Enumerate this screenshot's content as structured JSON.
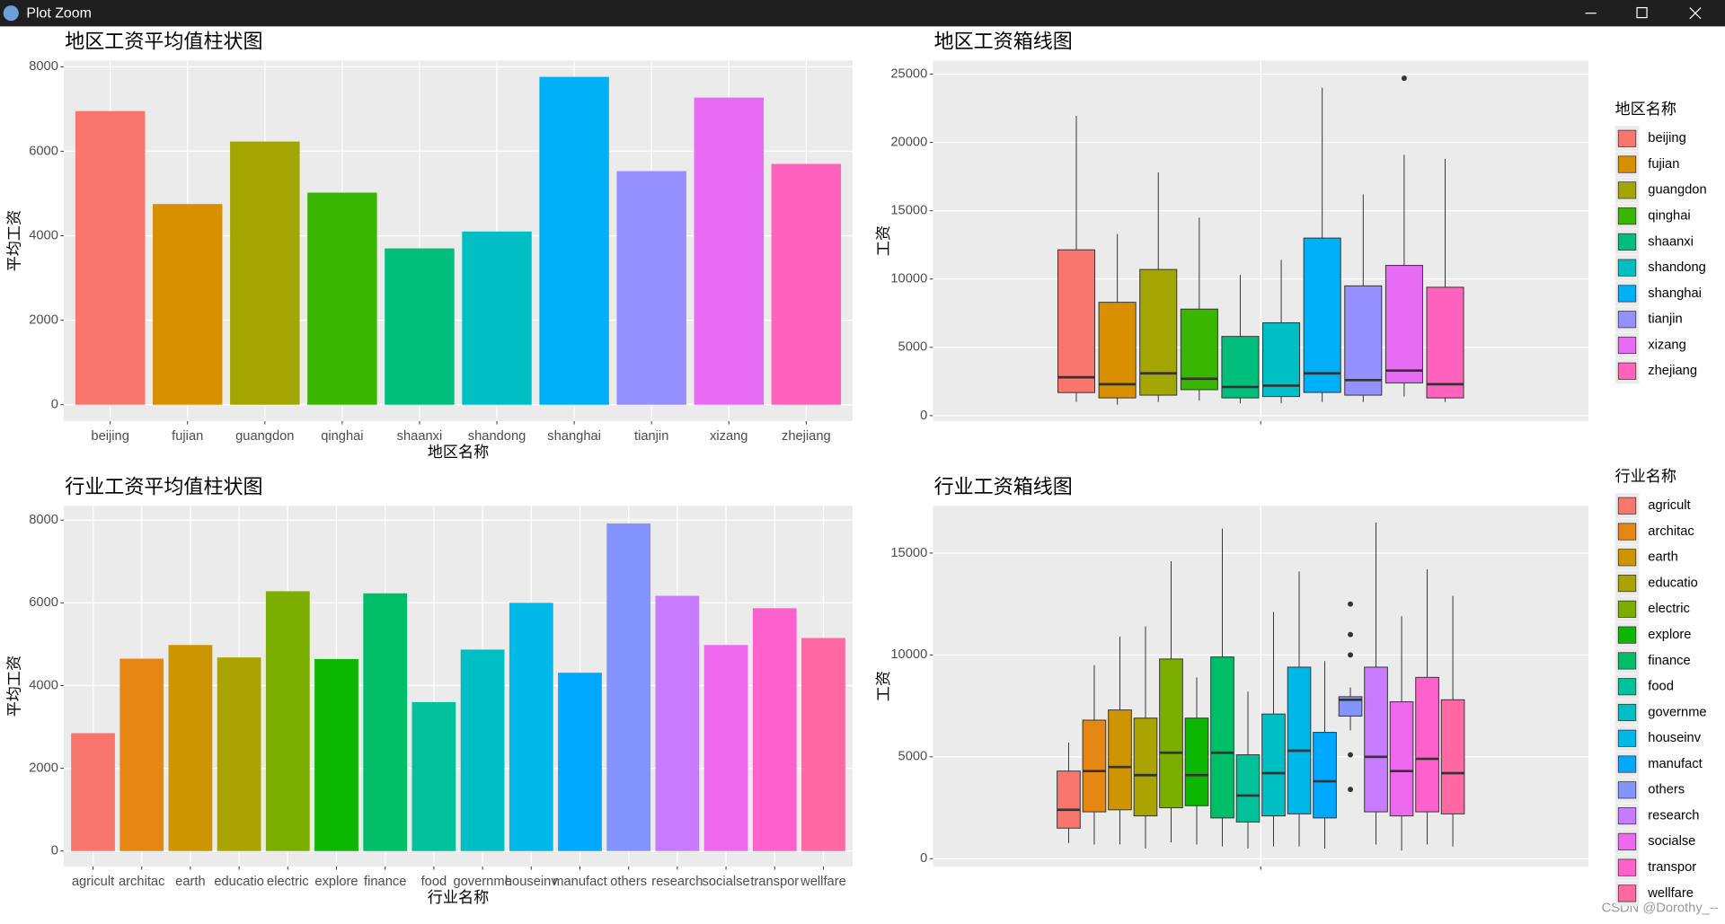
{
  "window_title": "Plot Zoom",
  "watermark": "CSDN @Dorothy_--",
  "chart_data": [
    {
      "type": "bar",
      "title": "地区工资平均值柱状图",
      "x_label": "地区名称",
      "y_label": "平均工资",
      "categories": [
        "beijing",
        "fujian",
        "guangdon",
        "qinghai",
        "shaanxi",
        "shandong",
        "shanghai",
        "tianjin",
        "xizang",
        "zhejiang"
      ],
      "values": [
        6950,
        4750,
        6230,
        5020,
        3700,
        4100,
        7760,
        5530,
        7270,
        5700
      ],
      "colors": [
        "#F8766D",
        "#D89000",
        "#A3A500",
        "#39B600",
        "#00BF7D",
        "#00BFC4",
        "#00B0F6",
        "#9590FF",
        "#E76BF3",
        "#FF62BC"
      ],
      "ylim": [
        -388,
        8148
      ],
      "yticks": [
        0,
        2000,
        4000,
        6000,
        8000
      ]
    },
    {
      "type": "box",
      "title": "地区工资箱线图",
      "y_label": "工资",
      "legend_title": "地区名称",
      "ylim": [
        -400,
        26000
      ],
      "yticks": [
        0,
        5000,
        10000,
        15000,
        20000,
        25000
      ],
      "series": [
        {
          "name": "beijing",
          "color": "#F8766D",
          "min": 1000,
          "q1": 1690,
          "median": 2810,
          "q3": 12140,
          "max": 21950,
          "outliers": []
        },
        {
          "name": "fujian",
          "color": "#D89000",
          "min": 800,
          "q1": 1300,
          "median": 2300,
          "q3": 8300,
          "max": 13300,
          "outliers": []
        },
        {
          "name": "guangdon",
          "color": "#A3A500",
          "min": 1000,
          "q1": 1500,
          "median": 3100,
          "q3": 10700,
          "max": 17800,
          "outliers": []
        },
        {
          "name": "qinghai",
          "color": "#39B600",
          "min": 1100,
          "q1": 1900,
          "median": 2700,
          "q3": 7800,
          "max": 14500,
          "outliers": []
        },
        {
          "name": "shaanxi",
          "color": "#00BF7D",
          "min": 900,
          "q1": 1300,
          "median": 2100,
          "q3": 5800,
          "max": 10300,
          "outliers": []
        },
        {
          "name": "shandong",
          "color": "#00BFC4",
          "min": 900,
          "q1": 1400,
          "median": 2200,
          "q3": 6800,
          "max": 11400,
          "outliers": []
        },
        {
          "name": "shanghai",
          "color": "#00B0F6",
          "min": 1000,
          "q1": 1700,
          "median": 3100,
          "q3": 13000,
          "max": 24000,
          "outliers": []
        },
        {
          "name": "tianjin",
          "color": "#9590FF",
          "min": 1000,
          "q1": 1500,
          "median": 2600,
          "q3": 9500,
          "max": 16200,
          "outliers": []
        },
        {
          "name": "xizang",
          "color": "#E76BF3",
          "min": 1400,
          "q1": 2400,
          "median": 3300,
          "q3": 11000,
          "max": 19100,
          "outliers": [
            24700
          ]
        },
        {
          "name": "zhejiang",
          "color": "#FF62BC",
          "min": 1000,
          "q1": 1300,
          "median": 2300,
          "q3": 9400,
          "max": 18800,
          "outliers": []
        }
      ]
    },
    {
      "type": "bar",
      "title": "行业工资平均值柱状图",
      "x_label": "行业名称",
      "y_label": "平均工资",
      "categories": [
        "agricult",
        "architac",
        "earth",
        "educatio",
        "electric",
        "explore",
        "finance",
        "food",
        "governme",
        "houseinv",
        "manufact",
        "others",
        "research",
        "socialse",
        "transpor",
        "wellfare"
      ],
      "values": [
        2850,
        4650,
        4980,
        4680,
        6280,
        4640,
        6230,
        3600,
        4870,
        6000,
        4310,
        7920,
        6170,
        4980,
        5870,
        5150
      ],
      "colors": [
        "#F8766D",
        "#E68613",
        "#CD9600",
        "#ABA300",
        "#7CAE00",
        "#0CB702",
        "#00BE67",
        "#00C19A",
        "#00BFC4",
        "#00B8E7",
        "#00A9FF",
        "#8494FF",
        "#C77CFF",
        "#ED68ED",
        "#FF61CC",
        "#FF68A1"
      ],
      "ylim": [
        -372,
        8346
      ],
      "yticks": [
        0,
        2000,
        4000,
        6000,
        8000
      ]
    },
    {
      "type": "box",
      "title": "行业工资箱线图",
      "y_label": "工资",
      "legend_title": "行业名称",
      "ylim": [
        -380,
        17320
      ],
      "yticks": [
        0,
        5000,
        10000,
        15000
      ],
      "series": [
        {
          "name": "agricult",
          "color": "#F8766D",
          "min": 770,
          "q1": 1500,
          "median": 2400,
          "q3": 4300,
          "max": 5700,
          "outliers": []
        },
        {
          "name": "architac",
          "color": "#E68613",
          "min": 700,
          "q1": 2300,
          "median": 4300,
          "q3": 6800,
          "max": 9500,
          "outliers": []
        },
        {
          "name": "earth",
          "color": "#CD9600",
          "min": 700,
          "q1": 2400,
          "median": 4500,
          "q3": 7300,
          "max": 10900,
          "outliers": []
        },
        {
          "name": "educatio",
          "color": "#ABA300",
          "min": 500,
          "q1": 2100,
          "median": 4100,
          "q3": 6900,
          "max": 11400,
          "outliers": []
        },
        {
          "name": "electric",
          "color": "#7CAE00",
          "min": 800,
          "q1": 2500,
          "median": 5200,
          "q3": 9800,
          "max": 14600,
          "outliers": []
        },
        {
          "name": "explore",
          "color": "#0CB702",
          "min": 700,
          "q1": 2600,
          "median": 4100,
          "q3": 6900,
          "max": 8900,
          "outliers": []
        },
        {
          "name": "finance",
          "color": "#00BE67",
          "min": 600,
          "q1": 2000,
          "median": 5200,
          "q3": 9900,
          "max": 16200,
          "outliers": []
        },
        {
          "name": "food",
          "color": "#00C19A",
          "min": 500,
          "q1": 1800,
          "median": 3100,
          "q3": 5100,
          "max": 8200,
          "outliers": []
        },
        {
          "name": "governme",
          "color": "#00BFC4",
          "min": 600,
          "q1": 2100,
          "median": 4200,
          "q3": 7100,
          "max": 12100,
          "outliers": []
        },
        {
          "name": "houseinv",
          "color": "#00B8E7",
          "min": 600,
          "q1": 2200,
          "median": 5300,
          "q3": 9400,
          "max": 14100,
          "outliers": []
        },
        {
          "name": "manufact",
          "color": "#00A9FF",
          "min": 500,
          "q1": 2000,
          "median": 3800,
          "q3": 6200,
          "max": 9700,
          "outliers": []
        },
        {
          "name": "others",
          "color": "#8494FF",
          "min": 6300,
          "q1": 7000,
          "median": 7800,
          "q3": 7950,
          "max": 8400,
          "outliers": [
            12500,
            11000,
            10000,
            5100,
            3400
          ]
        },
        {
          "name": "research",
          "color": "#C77CFF",
          "min": 700,
          "q1": 2300,
          "median": 5000,
          "q3": 9400,
          "max": 16500,
          "outliers": []
        },
        {
          "name": "socialse",
          "color": "#ED68ED",
          "min": 400,
          "q1": 2100,
          "median": 4300,
          "q3": 7700,
          "max": 11900,
          "outliers": []
        },
        {
          "name": "transpor",
          "color": "#FF61CC",
          "min": 700,
          "q1": 2300,
          "median": 4900,
          "q3": 8900,
          "max": 14200,
          "outliers": []
        },
        {
          "name": "wellfare",
          "color": "#FF68A1",
          "min": 600,
          "q1": 2200,
          "median": 4200,
          "q3": 7800,
          "max": 12900,
          "outliers": []
        }
      ]
    }
  ]
}
